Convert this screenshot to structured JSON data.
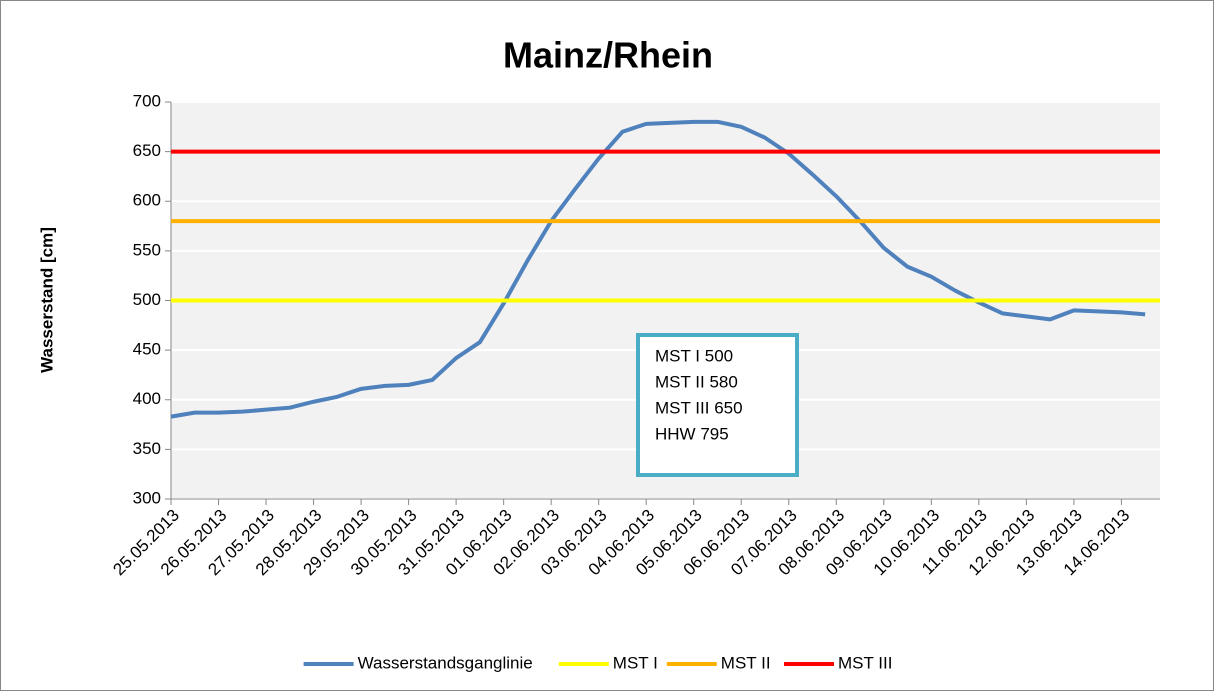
{
  "chart_data": {
    "type": "line",
    "title": "Mainz/Rhein",
    "y_label": "Wasserstand [cm]",
    "categories": [
      "25.05.2013",
      null,
      "26.05.2013",
      null,
      "27.05.2013",
      null,
      "28.05.2013",
      null,
      "29.05.2013",
      null,
      "30.05.2013",
      null,
      "31.05.2013",
      null,
      "01.06.2013",
      null,
      "02.06.2013",
      null,
      "03.06.2013",
      null,
      "04.06.2013",
      null,
      "05.06.2013",
      null,
      "06.06.2013",
      null,
      "07.06.2013",
      null,
      "08.06.2013",
      null,
      "09.06.2013",
      null,
      "10.06.2013",
      null,
      "11.06.2013",
      null,
      "12.06.2013",
      null,
      "13.06.2013",
      null,
      "14.06.2013",
      null
    ],
    "series": [
      {
        "name": "Wasserstandsganglinie",
        "color": "#4f81bd",
        "values": [
          383,
          387,
          387,
          388,
          390,
          392,
          398,
          403,
          411,
          414,
          415,
          420,
          442,
          458,
          497,
          540,
          580,
          612,
          643,
          670,
          678,
          679,
          680,
          680,
          675,
          664,
          648,
          627,
          605,
          580,
          553,
          534,
          524,
          510,
          498,
          487,
          484,
          481,
          490,
          489,
          488,
          486
        ]
      },
      {
        "name": "MST I",
        "color": "#ffff00",
        "value": 500
      },
      {
        "name": "MST II",
        "color": "#ffb000",
        "value": 580
      },
      {
        "name": "MST III",
        "color": "#ff0000",
        "value": 650
      }
    ],
    "annotation": [
      "MST I 500",
      "MST II 580",
      "MST III 650",
      "HHW 795"
    ],
    "ylim": [
      300,
      700
    ],
    "yticks": [
      300,
      350,
      400,
      450,
      500,
      550,
      600,
      650,
      700
    ],
    "grid": true,
    "legend": "bottom"
  }
}
